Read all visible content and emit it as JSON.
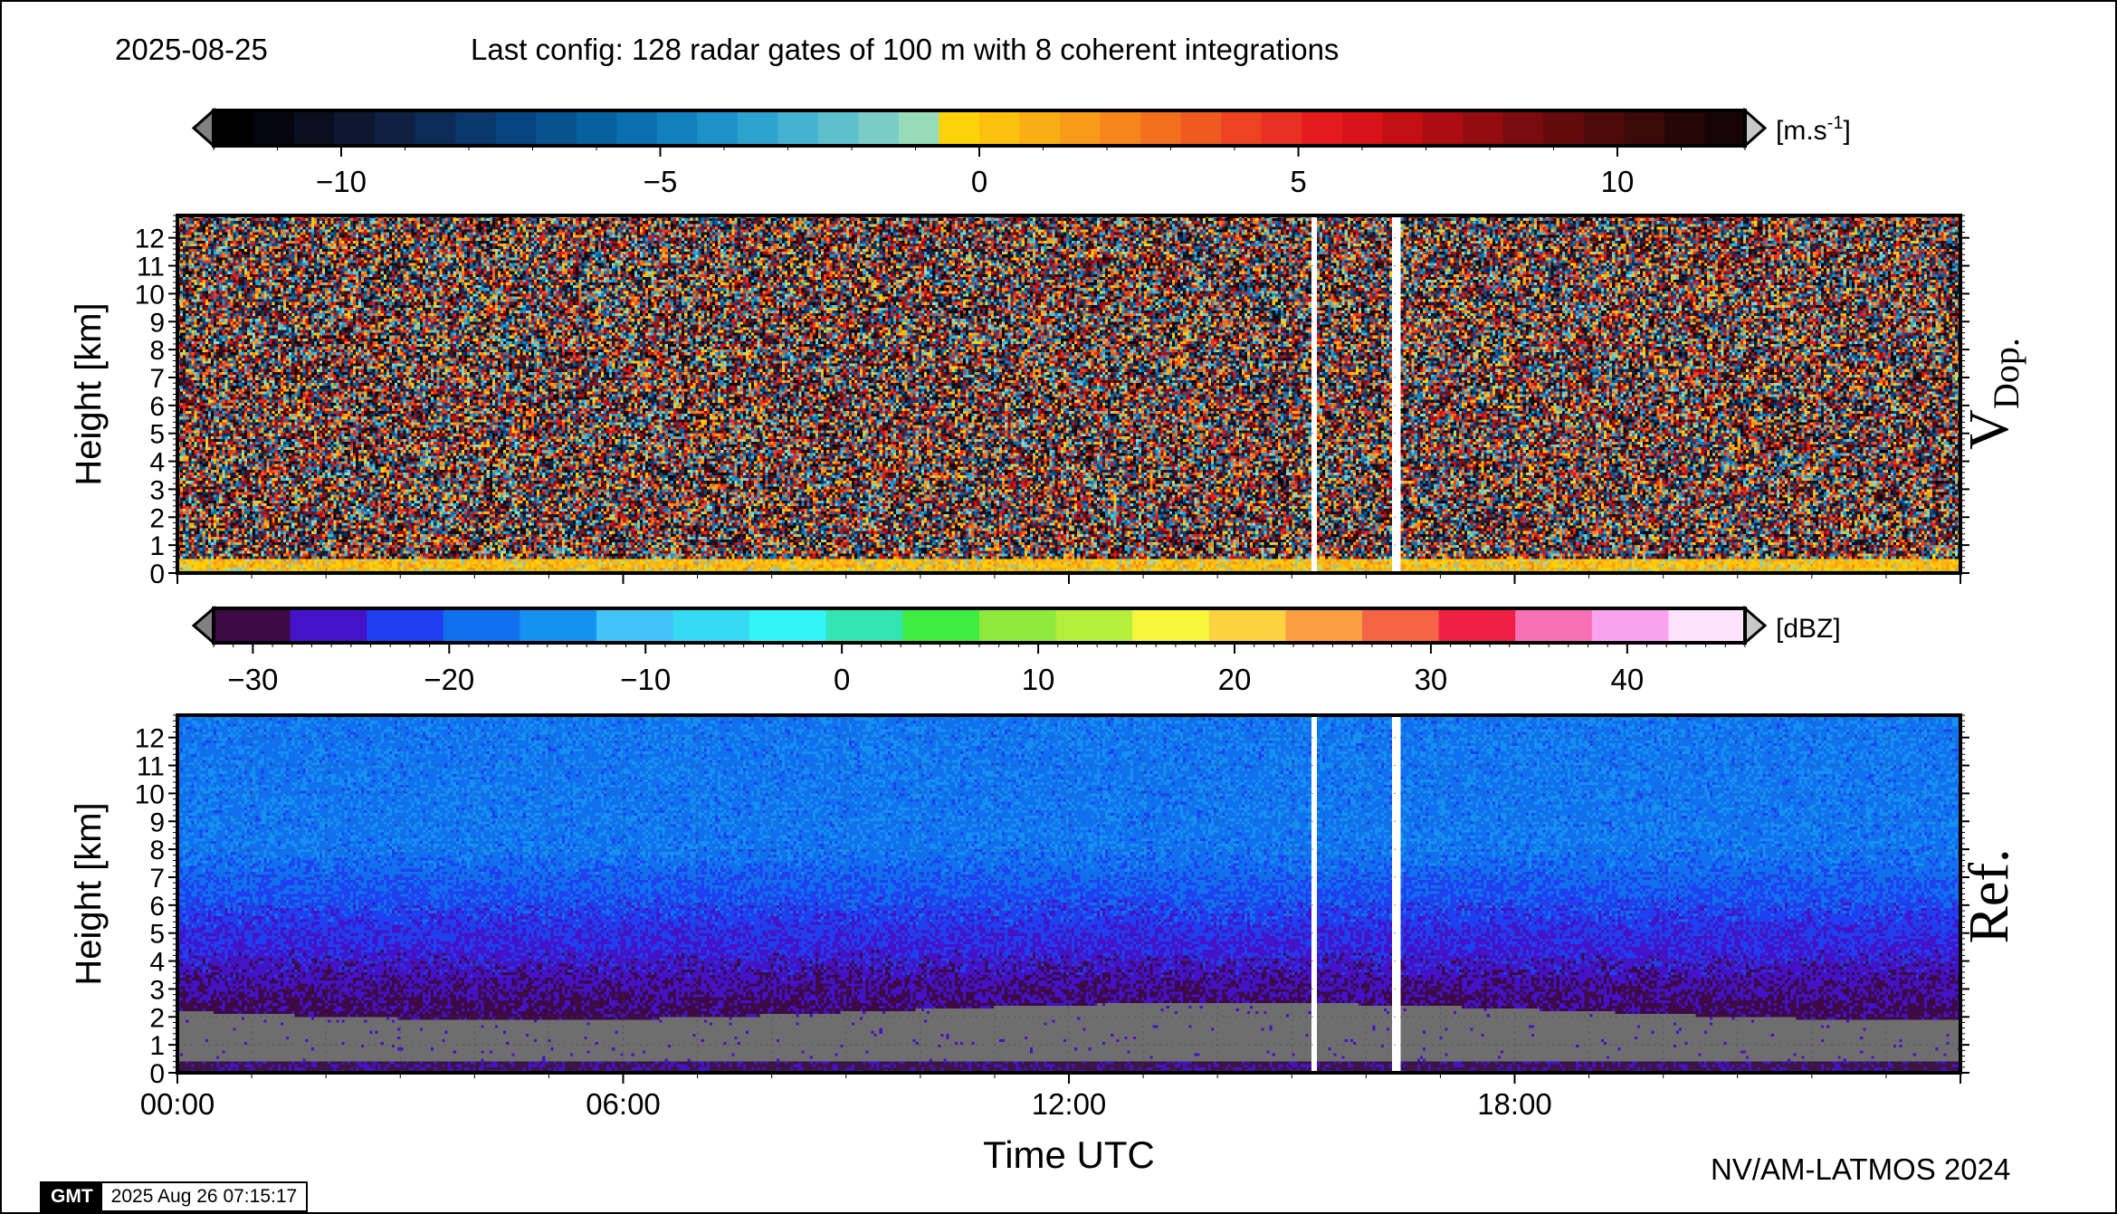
{
  "header": {
    "date": "2025-08-25",
    "config": "Last config: 128 radar gates of 100 m with 8 coherent integrations"
  },
  "footer": {
    "credit": "NV/AM-LATMOS 2024",
    "gmt_logo": "GMT",
    "gmt_timestamp": "2025 Aug 26 07:15:17"
  },
  "chart_data": [
    {
      "type": "heatmap",
      "name": "V",
      "name_subscript": "Dop.",
      "ylabel": "Height [km]",
      "xlabel": "",
      "x_unit": "hours UTC",
      "xlim": [
        0,
        24
      ],
      "ylim": [
        0,
        12.8
      ],
      "yticks": [
        "0",
        "1",
        "2",
        "3",
        "4",
        "5",
        "6",
        "7",
        "8",
        "9",
        "10",
        "11",
        "12"
      ],
      "xticks": [],
      "grid": true,
      "colorbar": {
        "unit": "[m.s-1]",
        "unit_base": "[m.s",
        "unit_sup": "-1",
        "unit_end": "]",
        "range": [
          -12,
          12
        ],
        "ticks": [
          "−10",
          "−5",
          "0",
          "5",
          "10"
        ],
        "tick_values": [
          -10,
          -5,
          0,
          5,
          10
        ],
        "colors": [
          "#000000",
          "#05060f",
          "#0a0f1f",
          "#0d1830",
          "#0f2142",
          "#0c2b56",
          "#0a376c",
          "#08447f",
          "#07528f",
          "#06619f",
          "#0a70b0",
          "#1380be",
          "#1e91c9",
          "#2ea2cf",
          "#45b2d1",
          "#5fc0cd",
          "#79cdc6",
          "#97dbb8",
          "#fdd20a",
          "#fcc10f",
          "#f9ae14",
          "#f89b18",
          "#f6851b",
          "#f26f1e",
          "#ef5a20",
          "#ec4421",
          "#e83023",
          "#e51c1e",
          "#d8141a",
          "#c30f14",
          "#ab0d12",
          "#930c10",
          "#7a0b0e",
          "#630b0c",
          "#4e0a0a",
          "#3a0908",
          "#260606",
          "#160404"
        ],
        "extend_low": "#808080",
        "extend_high": "#c8c8c8"
      },
      "data_gaps_hours": [
        15.3,
        16.4
      ],
      "description_values": "noise dominant above 0.5 km; low-level band near 0 to 1 m.s-1"
    },
    {
      "type": "heatmap",
      "name": "Ref.",
      "ylabel": "Height [km]",
      "xlabel": "Time UTC",
      "x_unit": "hours UTC",
      "xlim": [
        0,
        24
      ],
      "ylim": [
        0,
        12.8
      ],
      "yticks": [
        "0",
        "1",
        "2",
        "3",
        "4",
        "5",
        "6",
        "7",
        "8",
        "9",
        "10",
        "11",
        "12"
      ],
      "xticks": [
        "00:00",
        "06:00",
        "12:00",
        "18:00"
      ],
      "xtick_values": [
        0,
        6,
        12,
        18
      ],
      "grid": true,
      "colorbar": {
        "unit": "[dBZ]",
        "range": [
          -32,
          46
        ],
        "ticks": [
          "−30",
          "−20",
          "−10",
          "0",
          "10",
          "20",
          "30",
          "40"
        ],
        "tick_values": [
          -30,
          -20,
          -10,
          0,
          10,
          20,
          30,
          40
        ],
        "colors": [
          "#3d0a46",
          "#4412c8",
          "#1f3ff0",
          "#1170ee",
          "#1591f2",
          "#41c3f8",
          "#36daf2",
          "#33f5f7",
          "#33e5b2",
          "#3fec40",
          "#8fe93a",
          "#b6ee3c",
          "#f8f63c",
          "#fbd23f",
          "#f99f42",
          "#f56444",
          "#f01f44",
          "#f870b4",
          "#f9a2ee",
          "#fde2fb"
        ],
        "extend_low": "#808080",
        "extend_high": "#c8c8c8"
      },
      "data_gaps_hours": [
        15.3,
        16.4
      ],
      "background_low_level_color": "#6e6e6e"
    }
  ]
}
